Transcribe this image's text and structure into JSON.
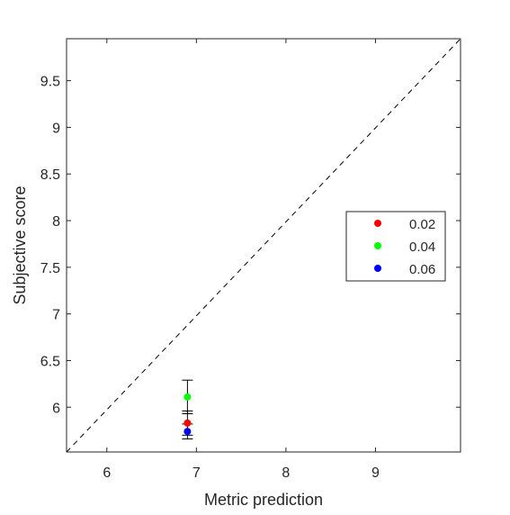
{
  "chart_data": {
    "type": "scatter",
    "title": "",
    "xlabel": "Metric prediction",
    "ylabel": "Subjective score",
    "xlim": [
      5.55,
      9.95
    ],
    "ylim": [
      5.52,
      9.95
    ],
    "x_ticks": [
      6,
      7,
      8,
      9
    ],
    "x_tick_labels": [
      "6",
      "7",
      "8",
      "9"
    ],
    "y_ticks": [
      6,
      6.5,
      7,
      7.5,
      8,
      8.5,
      9,
      9.5
    ],
    "y_tick_labels": [
      "6",
      "6.5",
      "7",
      "7.5",
      "8",
      "8.5",
      "9",
      "9.5"
    ],
    "grid": false,
    "legend_position": "right",
    "reference_line": {
      "style": "dashed",
      "color": "#000000",
      "from": [
        5.55,
        5.52
      ],
      "to": [
        9.95,
        9.95
      ]
    },
    "series": [
      {
        "name": "0.02",
        "color": "#ff0000",
        "points": [
          {
            "x": 6.9,
            "y": 5.83,
            "err_low": 0.13,
            "err_high": 0.13
          }
        ]
      },
      {
        "name": "0.04",
        "color": "#00ff00",
        "points": [
          {
            "x": 6.9,
            "y": 6.11,
            "err_low": 0.18,
            "err_high": 0.18
          }
        ]
      },
      {
        "name": "0.06",
        "color": "#0000ff",
        "points": [
          {
            "x": 6.9,
            "y": 5.74,
            "err_low": 0.08,
            "err_high": 0.08
          }
        ]
      }
    ]
  }
}
